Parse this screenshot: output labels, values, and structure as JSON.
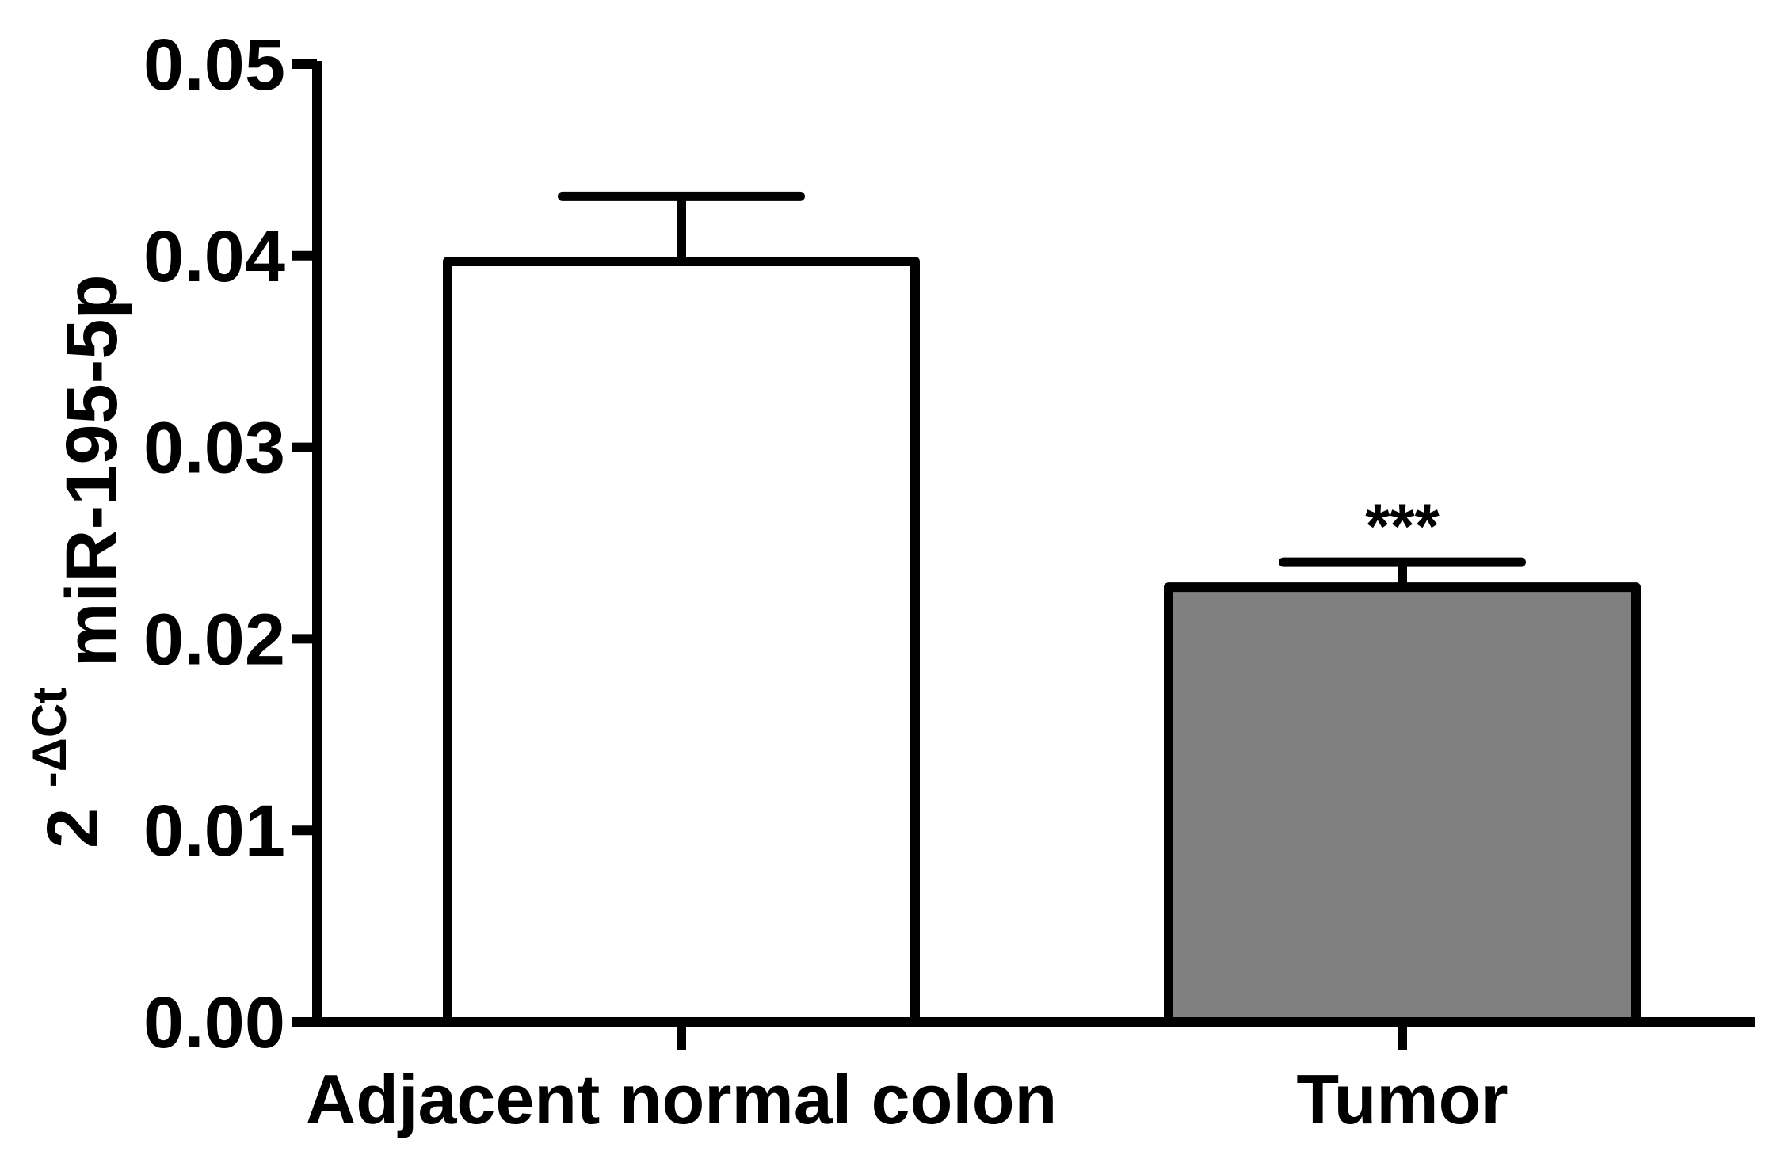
{
  "chart_data": {
    "type": "bar",
    "categories": [
      "Adjacent normal colon",
      "Tumor"
    ],
    "values": [
      0.0397,
      0.0227
    ],
    "error_upper": [
      0.0431,
      0.024
    ],
    "annotations": [
      "",
      "***"
    ],
    "bar_fill": [
      "#ffffff",
      "#808080"
    ],
    "ylim": [
      0,
      0.05
    ],
    "yticks": [
      0.0,
      0.01,
      0.02,
      0.03,
      0.04,
      0.05
    ],
    "ytick_labels": [
      "0.00",
      "0.01",
      "0.02",
      "0.03",
      "0.04",
      "0.05"
    ],
    "ylabel": {
      "base": "2",
      "superscript": "-ΔCt",
      "subscript": "miR-195-5p"
    },
    "xlabel": "",
    "title": "",
    "grid": false,
    "legend": "none"
  }
}
